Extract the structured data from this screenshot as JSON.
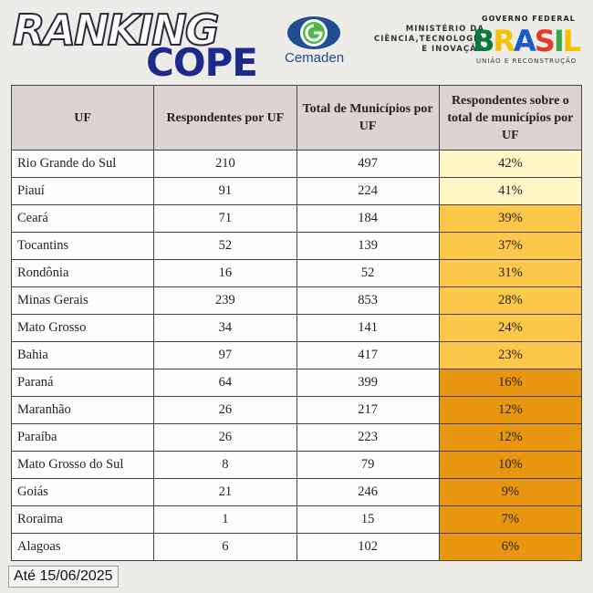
{
  "header": {
    "ranking": "RANKING",
    "cope": "COPE",
    "cemaden": "Cemaden",
    "ministry": [
      "MINISTÉRIO DA",
      "CIÊNCIA,TECNOLOGIA",
      "E INOVAÇÃO"
    ],
    "government": "GOVERNO FEDERAL",
    "brasil": "BRASIL",
    "slogan": "UNIÃO E RECONSTRUÇÃO"
  },
  "table": {
    "columns": [
      "UF",
      "Respondentes por UF",
      "Total de Municípios por UF",
      "Respondentes sobre o total de municípios por UF"
    ],
    "rows": [
      [
        "Rio Grande do Sul",
        "210",
        "497",
        "42%"
      ],
      [
        "Piauí",
        "91",
        "224",
        "41%"
      ],
      [
        "Ceará",
        "71",
        "184",
        "39%"
      ],
      [
        "Tocantins",
        "52",
        "139",
        "37%"
      ],
      [
        "Rondônia",
        "16",
        "52",
        "31%"
      ],
      [
        "Minas Gerais",
        "239",
        "853",
        "28%"
      ],
      [
        "Mato Grosso",
        "34",
        "141",
        "24%"
      ],
      [
        "Bahia",
        "97",
        "417",
        "23%"
      ],
      [
        "Paraná",
        "64",
        "399",
        "16%"
      ],
      [
        "Maranhão",
        "26",
        "217",
        "12%"
      ],
      [
        "Paraíba",
        "26",
        "223",
        "12%"
      ],
      [
        "Mato Grosso do Sul",
        "8",
        "79",
        "10%"
      ],
      [
        "Goiás",
        "21",
        "246",
        "9%"
      ],
      [
        "Roraima",
        "1",
        "15",
        "7%"
      ],
      [
        "Alagoas",
        "6",
        "102",
        "6%"
      ]
    ]
  },
  "footer": "Até 15/06/2025"
}
